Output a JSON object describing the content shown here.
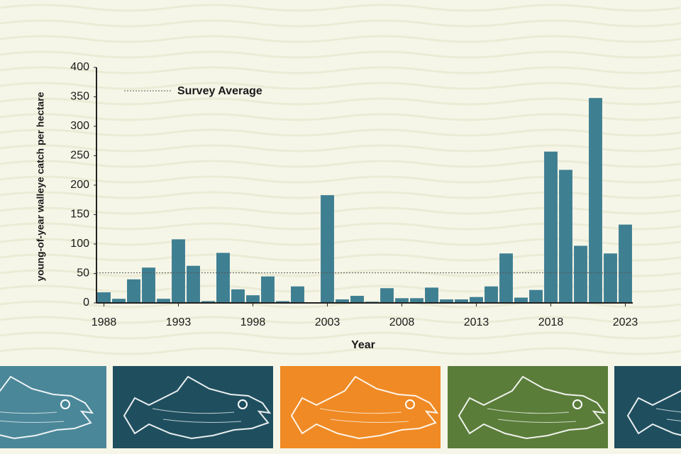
{
  "chart_data": {
    "type": "bar",
    "x_label": "Year",
    "y_label": "young-of-year walleye catch per hectare",
    "x": [
      1988,
      1989,
      1990,
      1991,
      1992,
      1993,
      1994,
      1995,
      1996,
      1997,
      1998,
      1999,
      2000,
      2001,
      2002,
      2003,
      2004,
      2005,
      2006,
      2007,
      2008,
      2009,
      2010,
      2011,
      2012,
      2013,
      2014,
      2015,
      2016,
      2017,
      2018,
      2019,
      2020,
      2021,
      2022,
      2023
    ],
    "values": [
      18,
      7,
      40,
      60,
      7,
      108,
      63,
      3,
      85,
      23,
      13,
      45,
      3,
      28,
      0,
      183,
      6,
      12,
      2,
      25,
      8,
      8,
      26,
      6,
      6,
      10,
      28,
      84,
      9,
      22,
      257,
      226,
      97,
      348,
      84,
      133
    ],
    "color": "#3f7f92",
    "xlim": [
      1987.5,
      2023.5
    ],
    "xticks": [
      1988,
      1993,
      1998,
      2003,
      2008,
      2013,
      2018,
      2023
    ],
    "ylim": [
      0,
      400
    ],
    "yticks": [
      0,
      50,
      100,
      150,
      200,
      250,
      300,
      350,
      400
    ],
    "reference_line": {
      "name": "Survey Average",
      "value": 51
    }
  }
}
